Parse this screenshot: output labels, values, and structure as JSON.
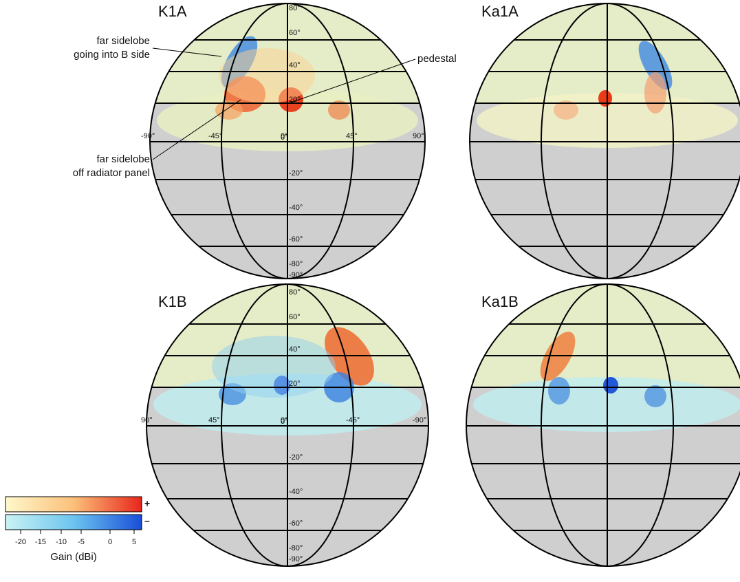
{
  "panels": [
    {
      "label": "K1A",
      "lat_labels": [
        "80°",
        "60°",
        "40°",
        "20°",
        "0°",
        "-20°",
        "-40°",
        "-60°",
        "-80°",
        "-90°"
      ],
      "lon_labels": [
        "-90°",
        "-45°",
        "0°",
        "45°",
        "90°"
      ]
    },
    {
      "label": "Ka1A"
    },
    {
      "label": "K1B",
      "lat_labels": [
        "80°",
        "60°",
        "40°",
        "20°",
        "0°",
        "-20°",
        "-40°",
        "-60°",
        "-80°",
        "-90°"
      ],
      "lon_labels": [
        "90°",
        "45°",
        "0°",
        "-45°",
        "-90°"
      ]
    },
    {
      "label": "Ka1B"
    }
  ],
  "annotations": [
    {
      "lines": [
        "far sidelobe",
        "going into B side"
      ]
    },
    {
      "lines": [
        "pedestal"
      ]
    },
    {
      "lines": [
        "far sidelobe",
        "off radiator panel"
      ]
    }
  ],
  "colorbar": {
    "plus": "+",
    "minus": "–",
    "ticks": [
      -20,
      -15,
      -10,
      -5,
      0,
      5
    ],
    "label": "Gain (dBi)"
  }
}
